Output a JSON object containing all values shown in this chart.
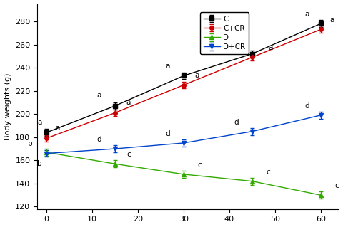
{
  "x": [
    0,
    15,
    30,
    45,
    60
  ],
  "C": [
    184,
    207,
    233,
    252,
    278
  ],
  "CCR": [
    179,
    201,
    225,
    249,
    273
  ],
  "D": [
    167,
    157,
    148,
    142,
    130
  ],
  "DCR": [
    166,
    170,
    175,
    185,
    199
  ],
  "C_err": [
    3,
    3,
    3,
    3,
    3
  ],
  "CCR_err": [
    3,
    3,
    3,
    3,
    3
  ],
  "D_err": [
    3,
    3,
    3,
    3,
    3
  ],
  "DCR_err": [
    3,
    3,
    3,
    3,
    3
  ],
  "C_labels": [
    "a",
    "a",
    "a",
    "a",
    "a"
  ],
  "CCR_labels": [
    "a",
    "a",
    "a",
    "a",
    "a"
  ],
  "D_labels": [
    "b",
    "c",
    "c",
    "c",
    "c"
  ],
  "DCR_labels": [
    "b",
    "d",
    "d",
    "d",
    "d"
  ],
  "C_color": "#000000",
  "CCR_color": "#cc0000",
  "D_color": "#33aa00",
  "DCR_color": "#0044cc",
  "C_marker": "s",
  "CCR_marker": "o",
  "D_marker": "^",
  "DCR_marker": "v",
  "ylabel": "Body weights (g)",
  "xlim": [
    -2,
    64
  ],
  "ylim": [
    118,
    295
  ],
  "yticks": [
    120,
    140,
    160,
    180,
    200,
    220,
    240,
    260,
    280
  ],
  "xticks": [
    0,
    10,
    20,
    30,
    40,
    50,
    60
  ],
  "legend_labels": [
    "C",
    "C+CR",
    "D",
    "D+CR"
  ],
  "background": "#ffffff",
  "ann_fontsize": 7.5,
  "axis_fontsize": 8,
  "legend_fontsize": 7.5
}
